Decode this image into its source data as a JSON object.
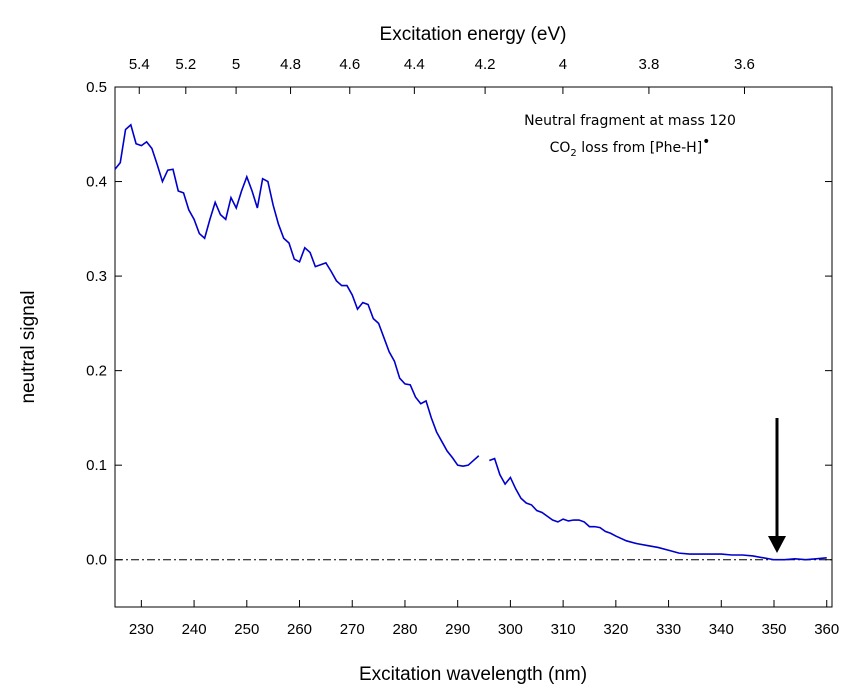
{
  "chart_data": {
    "type": "line",
    "xlabel": "Excitation wavelength (nm)",
    "ylabel": "neutral signal",
    "x2label": "Excitation energy (eV)",
    "annotations": [
      {
        "text": "Neutral fragment at mass 120"
      },
      {
        "parts": [
          "CO",
          "2",
          " loss from [Phe-H]",
          "•"
        ]
      }
    ],
    "xlim": [
      225,
      361
    ],
    "ylim": [
      -0.05,
      0.5
    ],
    "xticks": [
      230,
      240,
      250,
      260,
      270,
      280,
      290,
      300,
      310,
      320,
      330,
      340,
      350,
      360
    ],
    "x2ticks": [
      5.4,
      5.2,
      5,
      4.8,
      4.6,
      4.4,
      4.2,
      4,
      3.8,
      3.6
    ],
    "yticks": [
      {
        "value": 0,
        "label": "0.0"
      },
      0.1,
      0.2,
      0.3,
      0.4,
      0.5
    ],
    "grid": false,
    "x": [
      225,
      226,
      227,
      228,
      229,
      230,
      231,
      232,
      233,
      234,
      235,
      236,
      237,
      238,
      239,
      240,
      241,
      242,
      243,
      244,
      245,
      246,
      247,
      248,
      249,
      250,
      251,
      252,
      253,
      254,
      255,
      256,
      257,
      258,
      259,
      260,
      261,
      262,
      263,
      264,
      265,
      266,
      267,
      268,
      269,
      270,
      271,
      272,
      273,
      274,
      275,
      276,
      277,
      278,
      279,
      280,
      281,
      282,
      283,
      284,
      285,
      286,
      287,
      288,
      289,
      290,
      291,
      292,
      293,
      294,
      295,
      296,
      297,
      298,
      299,
      300,
      301,
      302,
      303,
      304,
      305,
      306,
      307,
      308,
      309,
      310,
      311,
      312,
      313,
      314,
      315,
      316,
      317,
      318,
      319,
      320,
      322,
      324,
      326,
      328,
      330,
      332,
      334,
      336,
      338,
      340,
      342,
      344,
      346,
      348,
      350,
      352,
      354,
      356,
      358,
      360
    ],
    "series": [
      {
        "name": "neutral signal",
        "color": "#0000cc",
        "values": [
          0.413,
          0.42,
          0.455,
          0.46,
          0.44,
          0.438,
          0.442,
          0.435,
          0.418,
          0.4,
          0.412,
          0.413,
          0.39,
          0.388,
          0.37,
          0.36,
          0.345,
          0.34,
          0.36,
          0.378,
          0.365,
          0.36,
          0.383,
          0.372,
          0.39,
          0.405,
          0.39,
          0.372,
          0.403,
          0.4,
          0.375,
          0.355,
          0.34,
          0.335,
          0.318,
          0.315,
          0.33,
          0.325,
          0.31,
          0.312,
          0.314,
          0.305,
          0.295,
          0.29,
          0.29,
          0.28,
          0.265,
          0.272,
          0.27,
          0.255,
          0.25,
          0.235,
          0.22,
          0.21,
          0.192,
          0.186,
          0.185,
          0.172,
          0.165,
          0.168,
          0.15,
          0.135,
          0.125,
          0.115,
          0.108,
          0.1,
          0.099,
          0.1,
          0.105,
          0.11,
          null,
          0.105,
          0.107,
          0.09,
          0.08,
          0.087,
          0.075,
          0.065,
          0.06,
          0.058,
          0.052,
          0.05,
          0.046,
          0.042,
          0.04,
          0.043,
          0.041,
          0.042,
          0.042,
          0.04,
          0.035,
          0.035,
          0.034,
          0.03,
          0.028,
          0.025,
          0.02,
          0.017,
          0.015,
          0.013,
          0.01,
          0.007,
          0.006,
          0.006,
          0.006,
          0.006,
          0.005,
          0.005,
          0.004,
          0.002,
          0.0,
          0.0,
          0.001,
          0.0,
          0.001,
          0.002
        ]
      }
    ]
  }
}
